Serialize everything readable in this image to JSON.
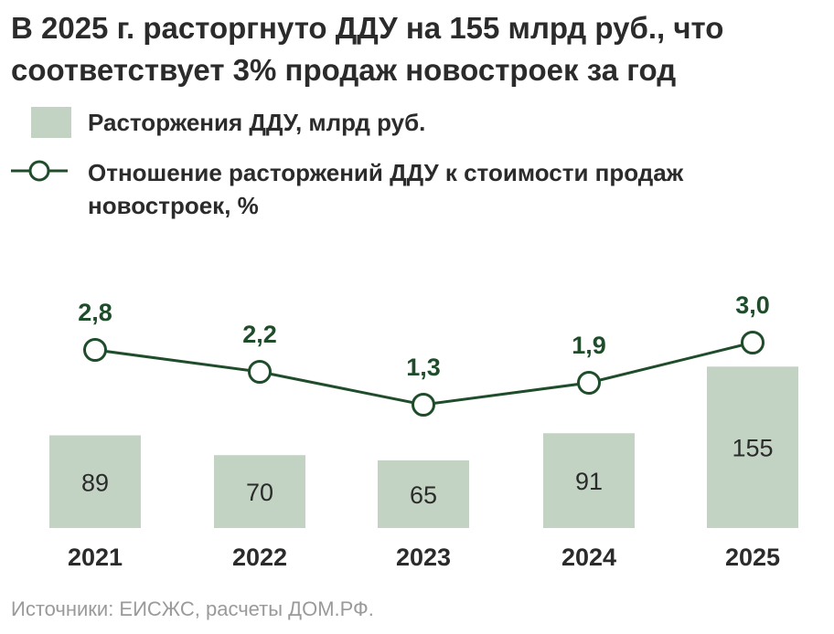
{
  "title": "В 2025 г. расторгнуто ДДУ на 155 млрд руб., что соответствует 3% продаж новостроек за год",
  "source": "Источники: ЕИСЖС, расчеты ДОМ.РФ.",
  "colors": {
    "bar": "#c3d3c3",
    "line": "#1f4d2b"
  },
  "chart_data": {
    "type": "bar",
    "categories": [
      "2021",
      "2022",
      "2023",
      "2024",
      "2025"
    ],
    "series": [
      {
        "name": "Расторжения ДДУ, млрд руб.",
        "type": "bar",
        "values": [
          89,
          70,
          65,
          91,
          155
        ],
        "labels": [
          "89",
          "70",
          "65",
          "91",
          "155"
        ]
      },
      {
        "name": "Отношение расторжений ДДУ к стоимости продаж новостроек, %",
        "type": "line",
        "values": [
          2.8,
          2.2,
          1.3,
          1.9,
          3.0
        ],
        "labels": [
          "2,8",
          "2,2",
          "1,3",
          "1,9",
          "3,0"
        ]
      }
    ],
    "legend": [
      "Расторжения ДДУ, млрд руб.",
      "Отношение расторжений ДДУ к стоимости продаж новостроек, %"
    ]
  }
}
